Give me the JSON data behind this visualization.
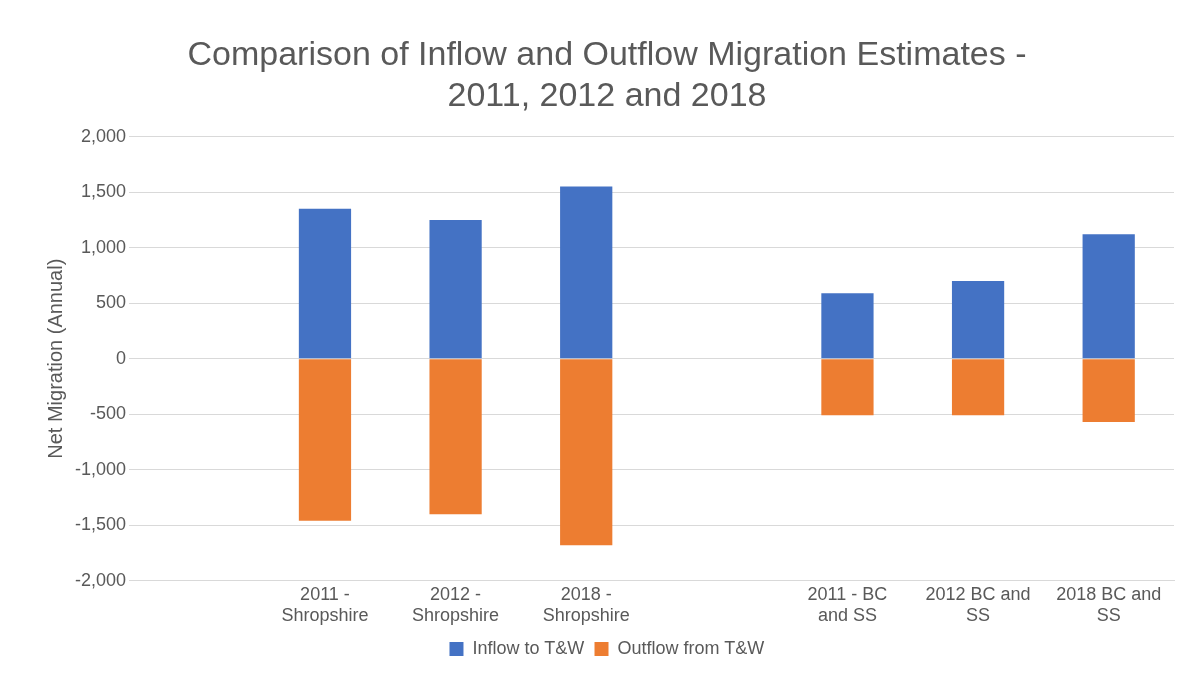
{
  "chart_data": {
    "type": "bar",
    "title": "Comparison of Inflow and Outflow Migration Estimates - 2011, 2012 and 2018",
    "ylabel": "Net Migration (Annual)",
    "categories": [
      null,
      "2011 - Shropshire",
      "2012 - Shropshire",
      "2018 - Shropshire",
      null,
      "2011 - BC and SS",
      "2012 BC and SS",
      "2018 BC and SS"
    ],
    "series": [
      {
        "name": "Inflow to T&W",
        "color": "#4472c4",
        "values": [
          null,
          1350,
          1250,
          1550,
          null,
          590,
          700,
          1120
        ]
      },
      {
        "name": "Outflow from T&W",
        "color": "#ed7d31",
        "values": [
          null,
          -1460,
          -1400,
          -1680,
          null,
          -510,
          -510,
          -570
        ]
      }
    ],
    "stacked": true,
    "ylim": [
      -2000,
      2000
    ],
    "yticks": [
      {
        "value": -2000,
        "label": "-2,000"
      },
      {
        "value": -1500,
        "label": "-1,500"
      },
      {
        "value": -1000,
        "label": "-1,000"
      },
      {
        "value": -500,
        "label": "-500"
      },
      0,
      {
        "value": 500,
        "label": "500"
      },
      {
        "value": 1000,
        "label": "1,000"
      },
      {
        "value": 1500,
        "label": "1,500"
      },
      {
        "value": 2000,
        "label": "2,000"
      }
    ],
    "grid": "y",
    "legend": "bottom"
  }
}
